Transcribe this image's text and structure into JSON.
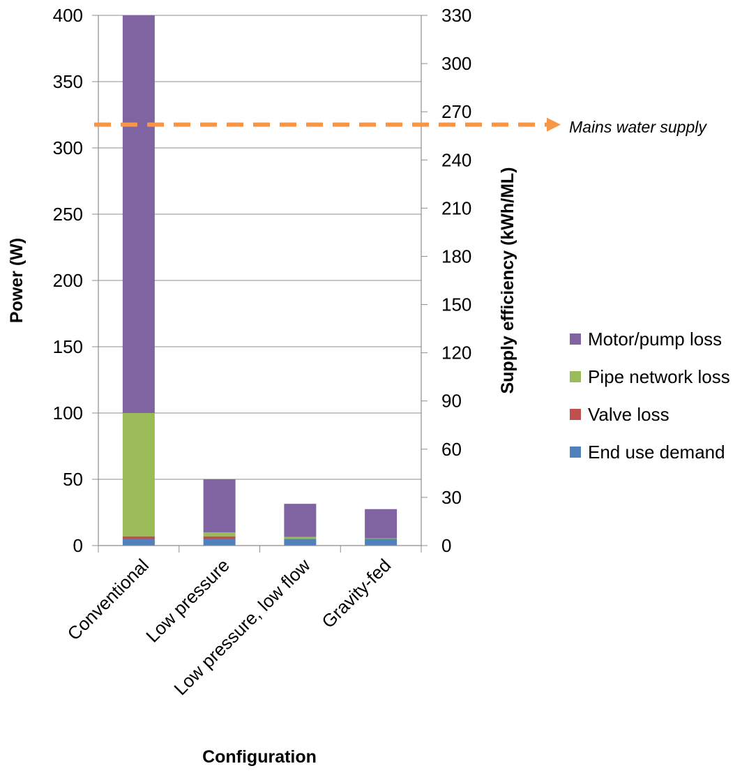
{
  "chart_data": {
    "type": "bar",
    "stacked": true,
    "categories": [
      "Conventional",
      "Low pressure",
      "Low pressure, low flow",
      "Gravity-fed"
    ],
    "series": [
      {
        "name": "End use demand",
        "color": "#4F81BD",
        "values": [
          5,
          5,
          5,
          5
        ]
      },
      {
        "name": "Valve loss",
        "color": "#C0504D",
        "values": [
          2,
          2,
          0,
          0
        ]
      },
      {
        "name": "Pipe network loss",
        "color": "#9BBB59",
        "values": [
          93,
          3,
          1.5,
          0.5
        ]
      },
      {
        "name": "Motor/pump loss",
        "color": "#8064A2",
        "values": [
          300,
          40,
          25,
          22
        ]
      }
    ],
    "xlabel": "Configuration",
    "ylabel": "Power (W)",
    "ylabel_right": "Supply efficiency (kWh/ML)",
    "ylim": [
      0,
      400
    ],
    "yticks": [
      "0",
      "50",
      "100",
      "150",
      "200",
      "250",
      "300",
      "350",
      "400"
    ],
    "y2lim": [
      0,
      330
    ],
    "y2ticks": [
      "0",
      "30",
      "60",
      "90",
      "120",
      "150",
      "180",
      "210",
      "240",
      "270",
      "300",
      "330"
    ],
    "reference_line": {
      "label": "Mains water supply",
      "value_kwh_per_ml": 262,
      "color": "#F79646",
      "style": "dashed arrow"
    },
    "grid": true,
    "legend_position": "right",
    "legend_order": [
      "Motor/pump loss",
      "Pipe network loss",
      "Valve loss",
      "End use demand"
    ]
  }
}
